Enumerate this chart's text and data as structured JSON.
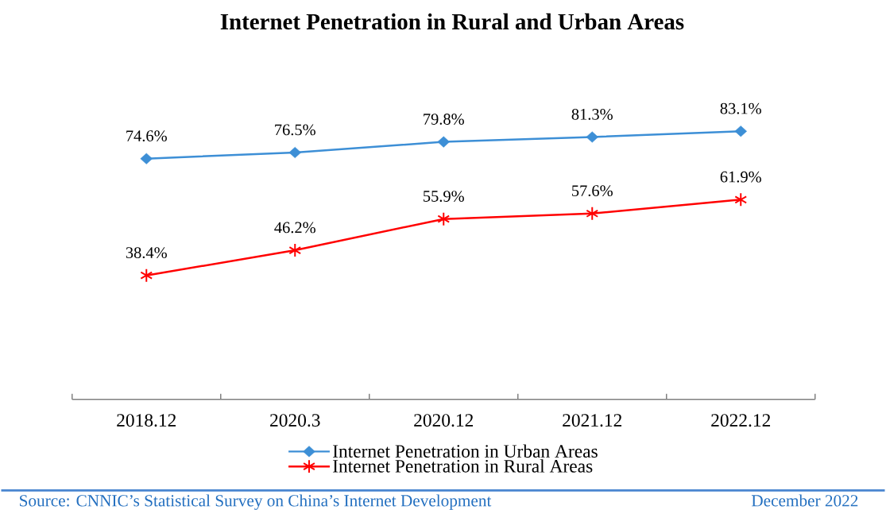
{
  "chart_data": {
    "type": "line",
    "title": "Internet Penetration in Rural and Urban Areas",
    "categories": [
      "2018.12",
      "2020.3",
      "2020.12",
      "2021.12",
      "2022.12"
    ],
    "series": [
      {
        "name": "Internet Penetration in Urban Areas",
        "color": "#3d8fd6",
        "marker": "diamond",
        "values": [
          74.6,
          76.5,
          79.8,
          81.3,
          83.1
        ],
        "value_labels": [
          "74.6%",
          "76.5%",
          "79.8%",
          "81.3%",
          "83.1%"
        ]
      },
      {
        "name": "Internet Penetration in Rural Areas",
        "color": "#ff0000",
        "marker": "cross",
        "values": [
          38.4,
          46.2,
          55.9,
          57.6,
          61.9
        ],
        "value_labels": [
          "38.4%",
          "46.2%",
          "55.9%",
          "57.6%",
          "61.9%"
        ]
      }
    ],
    "tick_labels": "x",
    "legend": "bottom",
    "annotations": [
      "Source: CNNIC’s Statistical Survey on China’s Internet Development",
      "December 2022"
    ]
  }
}
